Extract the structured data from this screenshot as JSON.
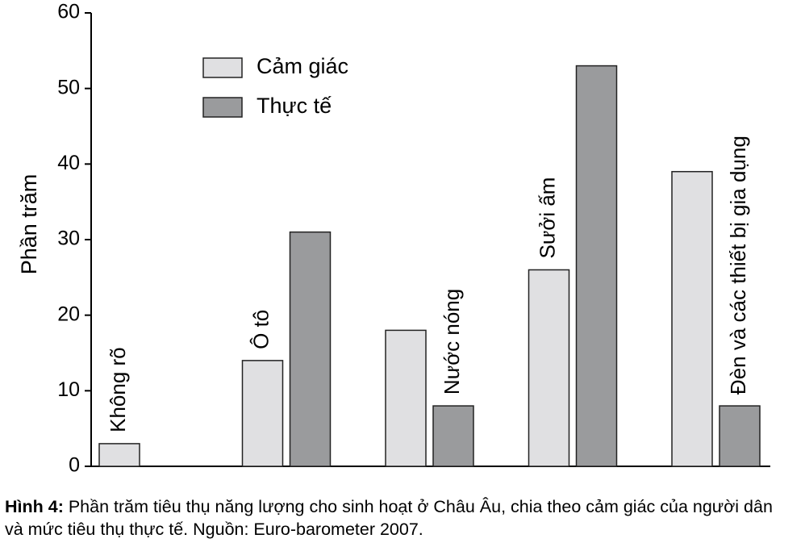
{
  "chart_data": {
    "type": "bar",
    "y_label": "Phần trăm",
    "categories": [
      "Không rõ",
      "Ô tô",
      "Nước nóng",
      "Sưởi ấm",
      "Đèn và các thiết bị gia dụng"
    ],
    "series": [
      {
        "name": "Cảm giác",
        "color": "#e0e0e2",
        "values": [
          3,
          14,
          18,
          26,
          39
        ]
      },
      {
        "name": "Thực tế",
        "color": "#9a9b9d",
        "values": [
          null,
          31,
          8,
          53,
          8
        ]
      }
    ],
    "ylim": [
      0,
      60
    ],
    "yticks": [
      0,
      10,
      20,
      30,
      40,
      50,
      60
    ],
    "legend": "upper left"
  },
  "caption": {
    "label": "Hình 4:",
    "text": "Phần trăm tiêu thụ năng lượng cho sinh hoạt ở Châu Âu, chia theo cảm giác của người dân và mức tiêu thụ thực tế. Nguồn: Euro-barometer 2007."
  }
}
